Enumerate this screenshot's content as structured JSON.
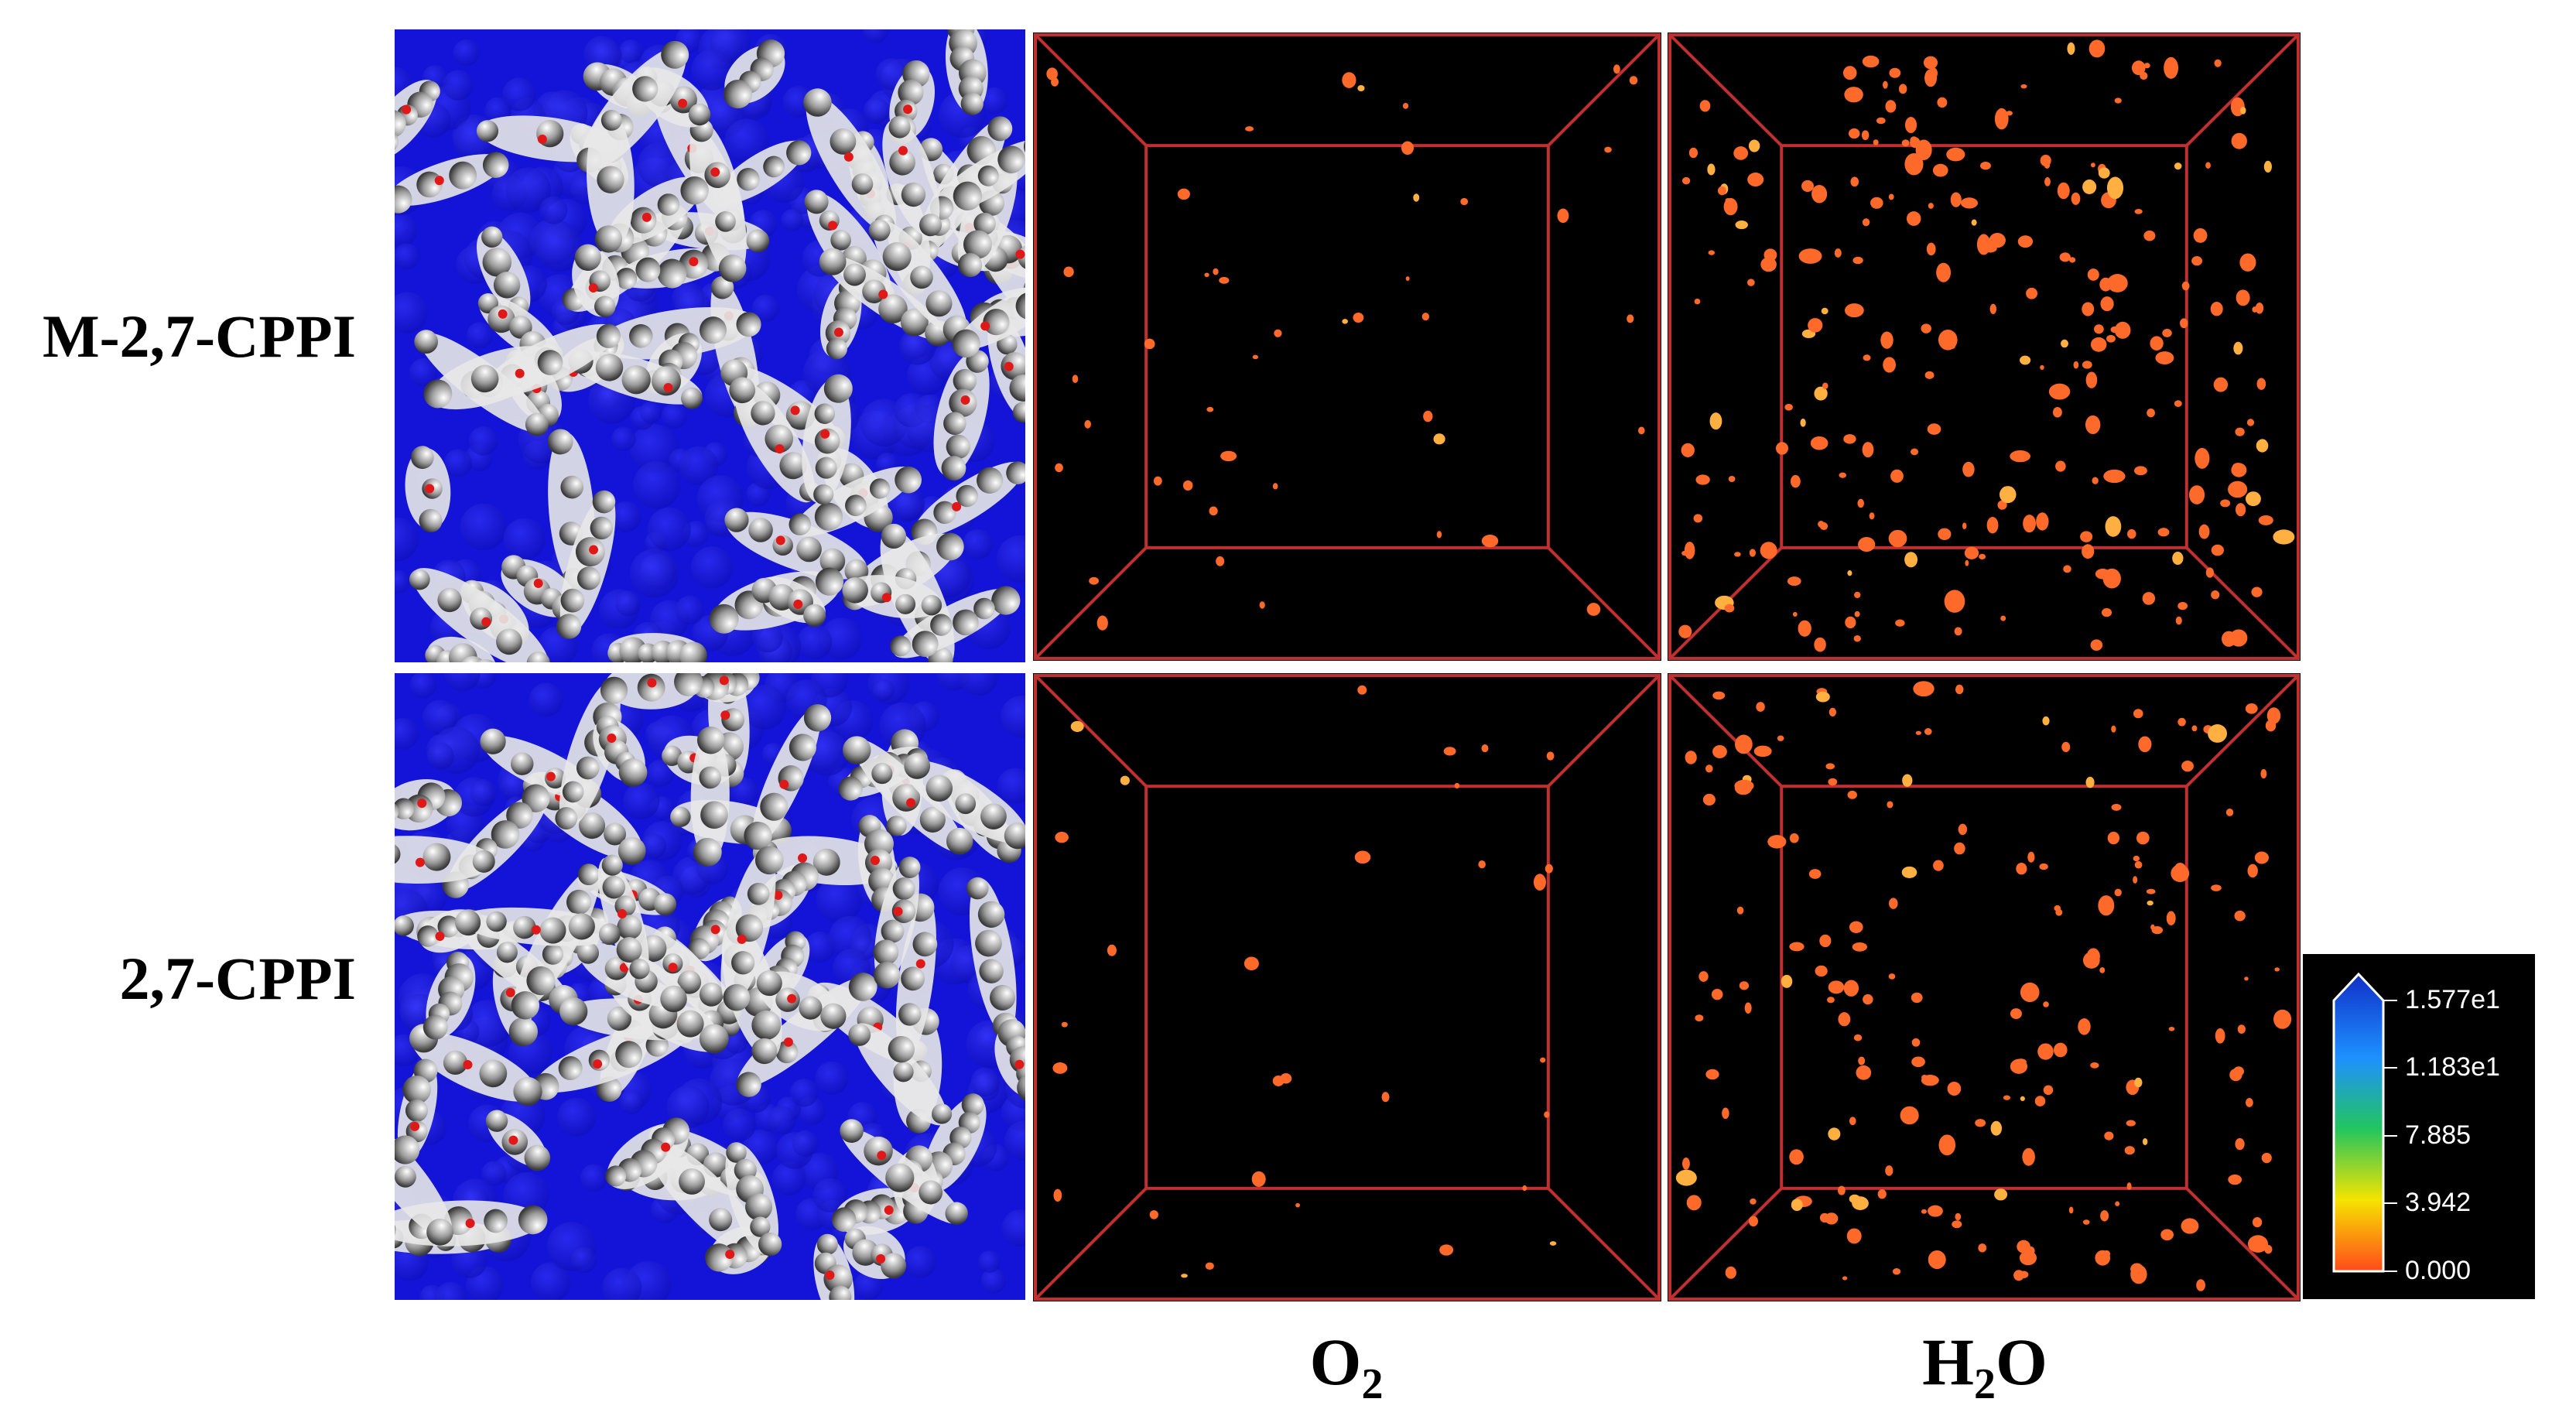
{
  "rows": [
    {
      "label": "M-2,7-CPPI"
    },
    {
      "label": "2,7-CPPI"
    }
  ],
  "columns": [
    {
      "label_main": "O",
      "label_sub": "2",
      "label_tail": ""
    },
    {
      "label_main": "H",
      "label_sub": "2",
      "label_tail": "O"
    }
  ],
  "colorbar": {
    "ticks": [
      "1.577e1",
      "1.183e1",
      "7.885",
      "3.942",
      "0.000"
    ],
    "colors": [
      "#1030c8",
      "#1e90ff",
      "#22c55e",
      "#f5e400",
      "#ff4a1a"
    ]
  },
  "colors": {
    "molecule_bg": "#1a1ae0",
    "box_edge": "#c03030",
    "density_spot": "#ff6a2a"
  }
}
